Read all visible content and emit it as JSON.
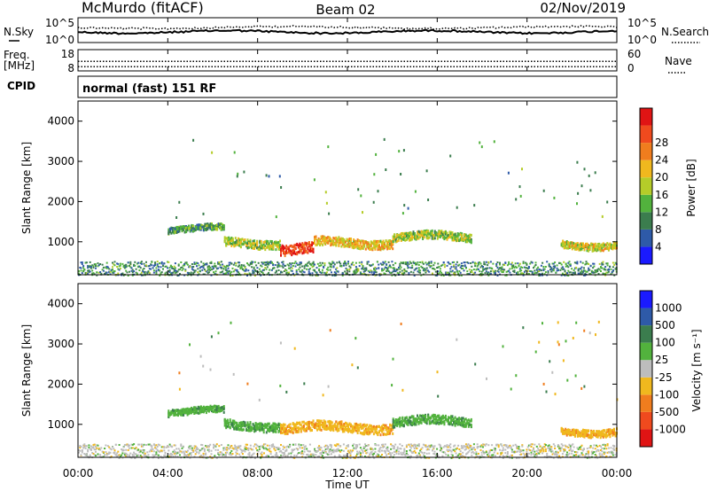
{
  "header": {
    "station": "McMurdo (fitACF)",
    "beam": "Beam 02",
    "date": "02/Nov/2019"
  },
  "time_axis": {
    "label": "Time UT",
    "tick_labels": [
      "00:00",
      "04:00",
      "08:00",
      "12:00",
      "16:00",
      "20:00",
      "00:00"
    ],
    "tick_hours": [
      0,
      4,
      8,
      12,
      16,
      20,
      24
    ],
    "range_hours": [
      0,
      24
    ]
  },
  "noise_panel": {
    "left_label": "N.Sky",
    "right_label": "N.Search",
    "left_ticks": [
      "10^5",
      "10^0"
    ],
    "right_ticks": [
      "10^5",
      "10^0"
    ]
  },
  "freq_panel": {
    "left_label_line1": "Freq.",
    "left_label_line2": "[MHz]",
    "left_ticks": [
      "18",
      "8"
    ],
    "right_label": "Nave",
    "right_ticks": [
      "60",
      "0"
    ],
    "freq_mhz": 10,
    "nave": 27
  },
  "cpid_panel": {
    "label": "CPID",
    "mode": "normal (fast) 151 RF"
  },
  "colors": {
    "ground_scatter": "#999999",
    "power_scale": [
      "#1a1aff",
      "#2e5aa8",
      "#3b7d4e",
      "#52b23d",
      "#b5cc29",
      "#f0b81e",
      "#f07d1e",
      "#f04a1e",
      "#e01414"
    ],
    "velocity_scale": [
      "#e01414",
      "#f04a1e",
      "#f07d1e",
      "#f0b81e",
      "#bdbdbd",
      "#52b23d",
      "#3b7d4e",
      "#2e5aa8",
      "#1a1aff"
    ]
  },
  "chart_data": [
    {
      "type": "heatmap",
      "name": "power",
      "ylabel": "Slant Range [km]",
      "yticks": [
        1000,
        2000,
        3000,
        4000
      ],
      "ylim": [
        180,
        4500
      ],
      "colorbar": {
        "label": "Power [dB]",
        "ticks": [
          "4",
          "8",
          "12",
          "16",
          "20",
          "24",
          "28"
        ],
        "range": [
          0,
          30
        ]
      },
      "features": [
        {
          "t_start": 4.0,
          "t_end": 6.5,
          "range_km": 1350,
          "thickness_km": 160,
          "value": 10
        },
        {
          "t_start": 6.5,
          "t_end": 9.0,
          "range_km": 1000,
          "thickness_km": 220,
          "value": 14
        },
        {
          "t_start": 9.0,
          "t_end": 10.5,
          "range_km": 850,
          "thickness_km": 260,
          "value": 26
        },
        {
          "t_start": 10.5,
          "t_end": 14.0,
          "range_km": 1000,
          "thickness_km": 220,
          "value": 18
        },
        {
          "t_start": 14.0,
          "t_end": 17.5,
          "range_km": 1150,
          "thickness_km": 200,
          "value": 14
        },
        {
          "t_start": 21.5,
          "t_end": 24.0,
          "range_km": 950,
          "thickness_km": 180,
          "value": 16
        }
      ]
    },
    {
      "type": "heatmap",
      "name": "velocity",
      "ylabel": "Slant Range [km]",
      "yticks": [
        1000,
        2000,
        3000,
        4000
      ],
      "ylim": [
        180,
        4500
      ],
      "colorbar": {
        "label": "Velocity [m s⁻¹]",
        "ticks": [
          "-1000",
          "-500",
          "-100",
          "-25",
          "25",
          "100",
          "500",
          "1000"
        ],
        "range": [
          -1200,
          1200
        ]
      },
      "features": [
        {
          "t_start": 4.0,
          "t_end": 6.5,
          "range_km": 1350,
          "thickness_km": 160,
          "value": 300
        },
        {
          "t_start": 6.5,
          "t_end": 9.0,
          "range_km": 1000,
          "thickness_km": 220,
          "value": 300
        },
        {
          "t_start": 9.0,
          "t_end": 14.0,
          "range_km": 950,
          "thickness_km": 240,
          "value": -300
        },
        {
          "t_start": 14.0,
          "t_end": 17.5,
          "range_km": 1100,
          "thickness_km": 220,
          "value": 300
        },
        {
          "t_start": 21.5,
          "t_end": 24.0,
          "range_km": 850,
          "thickness_km": 180,
          "value": -300
        }
      ]
    }
  ]
}
